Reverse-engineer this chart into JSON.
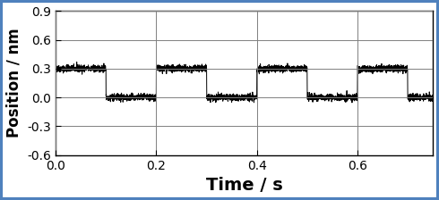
{
  "title": "",
  "xlabel": "Time / s",
  "ylabel": "Position / nm",
  "xlim": [
    0.0,
    0.75
  ],
  "ylim": [
    -0.6,
    0.9
  ],
  "yticks": [
    -0.6,
    -0.3,
    0.0,
    0.3,
    0.6,
    0.9
  ],
  "xticks": [
    0.0,
    0.2,
    0.4,
    0.6
  ],
  "line_color": "#000000",
  "background_color": "#ffffff",
  "grid_color": "#808080",
  "high_level": 0.3,
  "low_level": 0.0,
  "noise_std": 0.018,
  "period": 0.2,
  "duty": 0.5,
  "total_time": 0.75,
  "sample_rate": 5000,
  "line_width": 0.7,
  "xlabel_fontsize": 14,
  "ylabel_fontsize": 12,
  "tick_fontsize": 10,
  "border_color": "#4f81bd"
}
